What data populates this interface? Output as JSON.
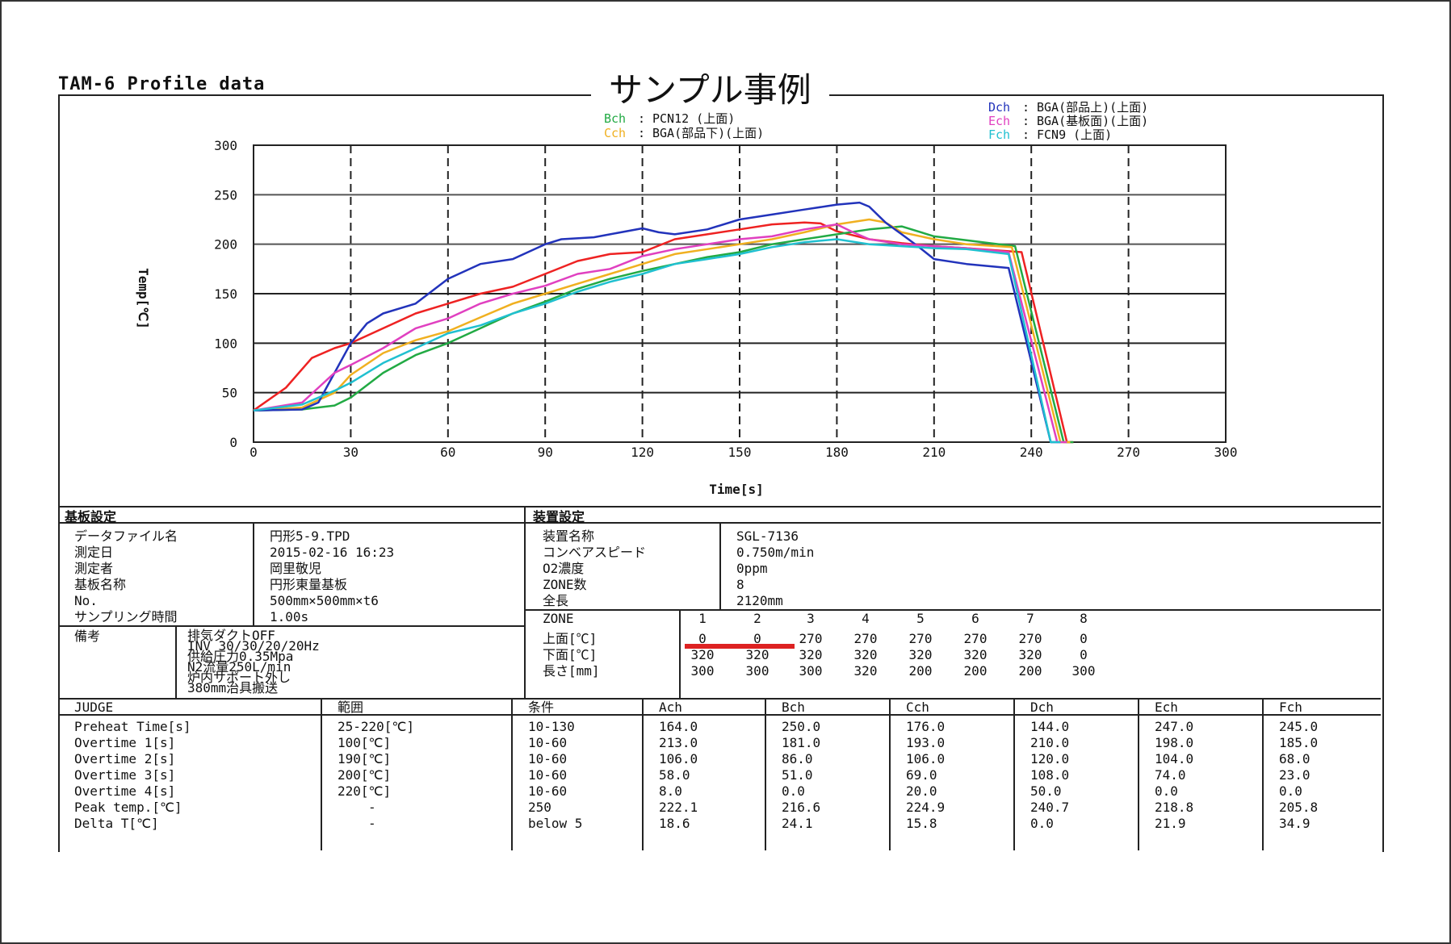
{
  "header": {
    "doc_title": "TAM-6 Profile data",
    "sample_title": "サンプル事例"
  },
  "legend": [
    {
      "ch": "Bch",
      "desc": "PCN12 (上面)",
      "color": "#22aa44"
    },
    {
      "ch": "Cch",
      "desc": "BGA(部品下)(上面)",
      "color": "#f0b020"
    },
    {
      "ch": "Dch",
      "desc": "BGA(部品上)(上面)",
      "color": "#2233bb"
    },
    {
      "ch": "Ech",
      "desc": "BGA(基板面)(上面)",
      "color": "#e040c0"
    },
    {
      "ch": "Fch",
      "desc": "FCN9 (上面)",
      "color": "#20c0d0"
    }
  ],
  "chart_data": {
    "type": "line",
    "xlabel": "Time[s]",
    "ylabel": "Temp[℃]",
    "xlim": [
      0,
      300
    ],
    "ylim": [
      0,
      300
    ],
    "xticks": [
      0,
      30,
      60,
      90,
      120,
      150,
      180,
      210,
      240,
      270,
      300
    ],
    "yticks": [
      0,
      50,
      100,
      150,
      200,
      250,
      300
    ],
    "grid": true,
    "series": [
      {
        "name": "Ach",
        "color": "#ee2222",
        "x": [
          0,
          10,
          18,
          25,
          30,
          40,
          50,
          60,
          70,
          80,
          90,
          100,
          110,
          120,
          130,
          140,
          150,
          160,
          170,
          175,
          180,
          190,
          200,
          210,
          220,
          237,
          251,
          253
        ],
        "y": [
          32,
          55,
          85,
          95,
          100,
          115,
          130,
          140,
          150,
          157,
          170,
          183,
          190,
          192,
          205,
          210,
          215,
          220,
          222,
          221,
          213,
          205,
          201,
          198,
          196,
          192,
          0,
          0
        ]
      },
      {
        "name": "Bch",
        "color": "#22aa44",
        "x": [
          0,
          15,
          25,
          30,
          40,
          50,
          60,
          70,
          80,
          90,
          100,
          110,
          120,
          130,
          140,
          150,
          160,
          170,
          180,
          190,
          200,
          210,
          220,
          230,
          235,
          250,
          253
        ],
        "y": [
          32,
          33,
          37,
          45,
          70,
          88,
          100,
          115,
          130,
          142,
          155,
          165,
          173,
          180,
          187,
          192,
          200,
          205,
          210,
          215,
          218,
          208,
          204,
          200,
          198,
          0,
          0
        ]
      },
      {
        "name": "Cch",
        "color": "#f0b020",
        "x": [
          0,
          15,
          25,
          30,
          40,
          50,
          60,
          70,
          80,
          90,
          100,
          110,
          120,
          130,
          140,
          150,
          160,
          170,
          180,
          190,
          195,
          200,
          210,
          220,
          234,
          249,
          252
        ],
        "y": [
          32,
          35,
          50,
          68,
          90,
          103,
          112,
          126,
          140,
          150,
          160,
          170,
          180,
          190,
          195,
          200,
          205,
          212,
          220,
          225,
          222,
          212,
          205,
          200,
          197,
          0,
          0
        ]
      },
      {
        "name": "Dch",
        "color": "#2233bb",
        "x": [
          0,
          15,
          20,
          25,
          30,
          35,
          40,
          50,
          60,
          70,
          80,
          90,
          95,
          105,
          110,
          120,
          125,
          130,
          140,
          150,
          160,
          170,
          180,
          187,
          190,
          195,
          200,
          205,
          210,
          220,
          233,
          246,
          249
        ],
        "y": [
          32,
          33,
          40,
          70,
          100,
          120,
          130,
          140,
          165,
          180,
          185,
          200,
          205,
          207,
          210,
          216,
          212,
          210,
          215,
          225,
          230,
          235,
          240,
          242,
          238,
          222,
          210,
          198,
          185,
          180,
          176,
          0,
          0
        ]
      },
      {
        "name": "Ech",
        "color": "#e040c0",
        "x": [
          0,
          15,
          20,
          25,
          30,
          40,
          50,
          60,
          70,
          80,
          90,
          100,
          110,
          120,
          130,
          140,
          150,
          160,
          170,
          180,
          185,
          190,
          200,
          210,
          220,
          233,
          248,
          251
        ],
        "y": [
          32,
          40,
          55,
          70,
          78,
          95,
          115,
          125,
          140,
          150,
          158,
          170,
          175,
          188,
          195,
          200,
          205,
          208,
          215,
          220,
          212,
          205,
          200,
          198,
          196,
          192,
          0,
          0
        ]
      },
      {
        "name": "Fch",
        "color": "#20c0d0",
        "x": [
          0,
          15,
          25,
          30,
          40,
          50,
          60,
          70,
          80,
          90,
          100,
          110,
          120,
          130,
          140,
          150,
          160,
          170,
          180,
          190,
          200,
          210,
          220,
          233,
          246,
          249
        ],
        "y": [
          32,
          38,
          52,
          60,
          80,
          95,
          110,
          118,
          130,
          140,
          152,
          162,
          170,
          180,
          185,
          190,
          197,
          202,
          205,
          200,
          198,
          196,
          195,
          190,
          0,
          0
        ]
      }
    ]
  },
  "kiban": {
    "heading": "基板設定",
    "rows": [
      {
        "label": "データファイル名",
        "value": "円形5-9.TPD"
      },
      {
        "label": "測定日",
        "value": "2015-02-16    16:23"
      },
      {
        "label": "測定者",
        "value": "岡里敬児"
      },
      {
        "label": "基板名称",
        "value": "円形東量基板"
      },
      {
        "label": "No.",
        "value": "500mm×500mm×t6"
      },
      {
        "label": "サンプリング時間",
        "value": "1.00s"
      }
    ],
    "remarks_label": "備考",
    "remarks": [
      "排気ダクトOFF",
      "INV  30/30/20/20Hz",
      "供給圧力0.35Mpa",
      "N2流量250L/min",
      "炉内サポート外し",
      "380mm治具搬送"
    ]
  },
  "souchi": {
    "heading": "装置設定",
    "rows": [
      {
        "label": "装置名称",
        "value": "SGL-7136"
      },
      {
        "label": "コンベアスピード",
        "value": "0.750m/min"
      },
      {
        "label": "O2濃度",
        "value": "0ppm"
      },
      {
        "label": "ZONE数",
        "value": "8"
      },
      {
        "label": "全長",
        "value": "2120mm"
      }
    ],
    "zone_label": "ZONE",
    "zones": [
      "1",
      "2",
      "3",
      "4",
      "5",
      "6",
      "7",
      "8"
    ],
    "zone_rows": [
      {
        "label": "上面[℃]",
        "values": [
          "0",
          "0",
          "270",
          "270",
          "270",
          "270",
          "270",
          "0"
        ]
      },
      {
        "label": "下面[℃]",
        "values": [
          "320",
          "320",
          "320",
          "320",
          "320",
          "320",
          "320",
          "0"
        ]
      },
      {
        "label": "長さ[mm]",
        "values": [
          "300",
          "300",
          "300",
          "320",
          "200",
          "200",
          "200",
          "300"
        ]
      }
    ]
  },
  "judge": {
    "headers": [
      "JUDGE",
      "範囲",
      "条件",
      "Ach",
      "Bch",
      "Cch",
      "Dch",
      "Ech",
      "Fch"
    ],
    "header_colors": [
      "#111111",
      "#111111",
      "#111111",
      "#ee2222",
      "#22aa44",
      "#f0b020",
      "#2233bb",
      "#e040c0",
      "#20c0d0"
    ],
    "rows": [
      [
        "Preheat Time[s]",
        "25-220[℃]",
        "10-130",
        "164.0",
        "250.0",
        "176.0",
        "144.0",
        "247.0",
        "245.0"
      ],
      [
        "Overtime 1[s]",
        "100[℃]",
        "10-60",
        "213.0",
        "181.0",
        "193.0",
        "210.0",
        "198.0",
        "185.0"
      ],
      [
        "Overtime 2[s]",
        "190[℃]",
        "10-60",
        "106.0",
        "86.0",
        "106.0",
        "120.0",
        "104.0",
        "68.0"
      ],
      [
        "Overtime 3[s]",
        "200[℃]",
        "10-60",
        "58.0",
        "51.0",
        "69.0",
        "108.0",
        "74.0",
        "23.0"
      ],
      [
        "Overtime 4[s]",
        "220[℃]",
        "10-60",
        "8.0",
        "0.0",
        "20.0",
        "50.0",
        "0.0",
        "0.0"
      ],
      [
        "Peak temp.[℃]",
        "-",
        "250",
        "222.1",
        "216.6",
        "224.9",
        "240.7",
        "218.8",
        "205.8"
      ],
      [
        "Delta T[℃]",
        "-",
        "below 5",
        "18.6",
        "24.1",
        "15.8",
        "0.0",
        "21.9",
        "34.9"
      ]
    ]
  }
}
